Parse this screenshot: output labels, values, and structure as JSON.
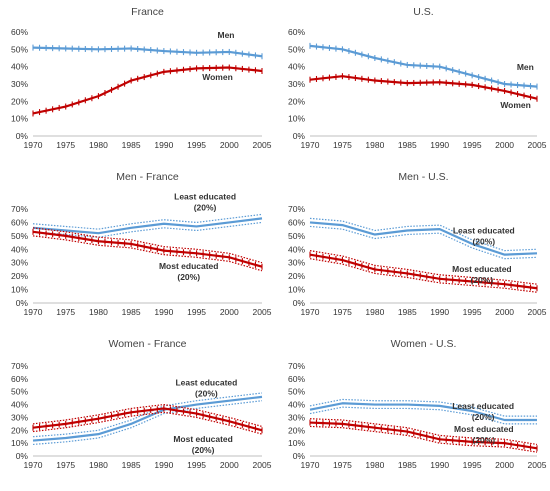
{
  "colors": {
    "blue": "#5b9bd5",
    "red": "#c00000",
    "axis": "#bfbfbf",
    "text": "#333333"
  },
  "chart_data": [
    {
      "type": "line",
      "title": "France",
      "x": [
        1970,
        1975,
        1980,
        1985,
        1990,
        1995,
        2000,
        2005
      ],
      "xlim": [
        1970,
        2005
      ],
      "ylim": [
        0,
        60
      ],
      "yticks": [
        "0%",
        "10%",
        "20%",
        "30%",
        "40%",
        "50%",
        "60%"
      ],
      "xticks": [
        "1970",
        "1975",
        "1980",
        "1985",
        "1990",
        "1995",
        "2000",
        "2005"
      ],
      "band": false,
      "markers": true,
      "series": [
        {
          "name": "Men",
          "color": "blue",
          "values": [
            51,
            50.5,
            50,
            50.5,
            49,
            48,
            48.5,
            46
          ]
        },
        {
          "name": "Women",
          "color": "red",
          "values": [
            13,
            17,
            23,
            32,
            37,
            39,
            39.5,
            37.5
          ]
        }
      ],
      "annotations": [
        {
          "lines": [
            "Men"
          ],
          "x": 1999.5,
          "y": 56.5
        },
        {
          "lines": [
            "Women"
          ],
          "x": 1998.2,
          "y": 32.2
        }
      ]
    },
    {
      "type": "line",
      "title": "U.S.",
      "x": [
        1970,
        1975,
        1980,
        1985,
        1990,
        1995,
        2000,
        2005
      ],
      "xlim": [
        1970,
        2005
      ],
      "ylim": [
        0,
        60
      ],
      "yticks": [
        "0%",
        "10%",
        "20%",
        "30%",
        "40%",
        "50%",
        "60%"
      ],
      "xticks": [
        "1970",
        "1975",
        "1980",
        "1985",
        "1990",
        "1995",
        "2000",
        "2005"
      ],
      "band": false,
      "markers": true,
      "series": [
        {
          "name": "Men",
          "color": "blue",
          "values": [
            52,
            50,
            45,
            41,
            40,
            35,
            30,
            28.5
          ]
        },
        {
          "name": "Women",
          "color": "red",
          "values": [
            32.5,
            34.5,
            32,
            30.5,
            31,
            29.5,
            26,
            21.5
          ]
        }
      ],
      "annotations": [
        {
          "lines": [
            "Men"
          ],
          "x": 2003.2,
          "y": 38.2
        },
        {
          "lines": [
            "Women"
          ],
          "x": 2001.7,
          "y": 16.2
        }
      ]
    },
    {
      "type": "line",
      "title": "Men - France",
      "x": [
        1970,
        1975,
        1980,
        1985,
        1990,
        1995,
        2000,
        2005
      ],
      "xlim": [
        1970,
        2005
      ],
      "ylim": [
        0,
        70
      ],
      "yticks": [
        "0%",
        "10%",
        "20%",
        "30%",
        "40%",
        "50%",
        "60%",
        "70%"
      ],
      "xticks": [
        "1970",
        "1975",
        "1980",
        "1985",
        "1990",
        "1995",
        "2000",
        "2005"
      ],
      "band": true,
      "band_width": 3,
      "series": [
        {
          "name": "Least educated (20%)",
          "color": "blue",
          "markers": false,
          "values": [
            56,
            54,
            52,
            56,
            59,
            57,
            60,
            63
          ]
        },
        {
          "name": "Most educated (20%)",
          "color": "red",
          "markers": true,
          "values": [
            53,
            50,
            46,
            44,
            39,
            37,
            34,
            27
          ]
        }
      ],
      "annotations": [
        {
          "lines": [
            "Least educated",
            "(20%)"
          ],
          "x": 1996.3,
          "y": 77,
          "bold": true
        },
        {
          "lines": [
            "Most educated",
            "(20%)"
          ],
          "x": 1993.8,
          "y": 25.5,
          "bold": true
        }
      ]
    },
    {
      "type": "line",
      "title": "Men - U.S.",
      "x": [
        1970,
        1975,
        1980,
        1985,
        1990,
        1995,
        2000,
        2005
      ],
      "xlim": [
        1970,
        2005
      ],
      "ylim": [
        0,
        70
      ],
      "yticks": [
        "0%",
        "10%",
        "20%",
        "30%",
        "40%",
        "50%",
        "60%",
        "70%"
      ],
      "xticks": [
        "1970",
        "1975",
        "1980",
        "1985",
        "1990",
        "1995",
        "2000",
        "2005"
      ],
      "band": true,
      "band_width": 3,
      "series": [
        {
          "name": "Least educated (20%)",
          "color": "blue",
          "markers": false,
          "values": [
            60,
            58,
            51,
            54,
            55,
            44,
            36,
            37
          ]
        },
        {
          "name": "Most educated (20%)",
          "color": "red",
          "markers": true,
          "values": [
            36,
            32,
            25,
            22,
            18,
            16,
            14,
            11
          ]
        }
      ],
      "annotations": [
        {
          "lines": [
            "Least educated",
            "(20%)"
          ],
          "x": 1996.8,
          "y": 51.7,
          "bold": true
        },
        {
          "lines": [
            "Most educated",
            "(20%)"
          ],
          "x": 1996.5,
          "y": 23.2,
          "bold": true
        }
      ]
    },
    {
      "type": "line",
      "title": "Women - France",
      "x": [
        1970,
        1975,
        1980,
        1985,
        1990,
        1995,
        2000,
        2005
      ],
      "xlim": [
        1970,
        2005
      ],
      "ylim": [
        0,
        70
      ],
      "yticks": [
        "0%",
        "10%",
        "20%",
        "30%",
        "40%",
        "50%",
        "60%",
        "70%"
      ],
      "xticks": [
        "1970",
        "1975",
        "1980",
        "1985",
        "1990",
        "1995",
        "2000",
        "2005"
      ],
      "band": true,
      "band_width": 3,
      "series": [
        {
          "name": "Least educated (20%)",
          "color": "blue",
          "markers": false,
          "values": [
            12,
            14,
            17,
            25,
            36,
            40,
            43,
            46
          ]
        },
        {
          "name": "Most educated (20%)",
          "color": "red",
          "markers": true,
          "values": [
            22,
            25,
            29,
            34,
            37,
            33,
            27,
            20
          ]
        }
      ],
      "annotations": [
        {
          "lines": [
            "Least educated",
            "(20%)"
          ],
          "x": 1996.5,
          "y": 54.8,
          "bold": true
        },
        {
          "lines": [
            "Most educated",
            "(20%)"
          ],
          "x": 1996,
          "y": 11,
          "bold": true
        }
      ]
    },
    {
      "type": "line",
      "title": "Women - U.S.",
      "x": [
        1970,
        1975,
        1980,
        1985,
        1990,
        1995,
        2000,
        2005
      ],
      "xlim": [
        1970,
        2005
      ],
      "ylim": [
        0,
        70
      ],
      "yticks": [
        "0%",
        "10%",
        "20%",
        "30%",
        "40%",
        "50%",
        "60%",
        "70%"
      ],
      "xticks": [
        "1970",
        "1975",
        "1980",
        "1985",
        "1990",
        "1995",
        "2000",
        "2005"
      ],
      "band": true,
      "band_width": 3,
      "series": [
        {
          "name": "Least educated (20%)",
          "color": "blue",
          "markers": false,
          "values": [
            36,
            41,
            40,
            40,
            39,
            35,
            28,
            28
          ]
        },
        {
          "name": "Most educated (20%)",
          "color": "red",
          "markers": true,
          "values": [
            26,
            25,
            22,
            19,
            13,
            11,
            10,
            6
          ]
        }
      ],
      "annotations": [
        {
          "lines": [
            "Least educated",
            "(20%)"
          ],
          "x": 1996.7,
          "y": 36.5,
          "bold": true
        },
        {
          "lines": [
            "Most educated",
            "(20%)"
          ],
          "x": 1996.8,
          "y": 18.5,
          "bold": true
        }
      ]
    }
  ]
}
